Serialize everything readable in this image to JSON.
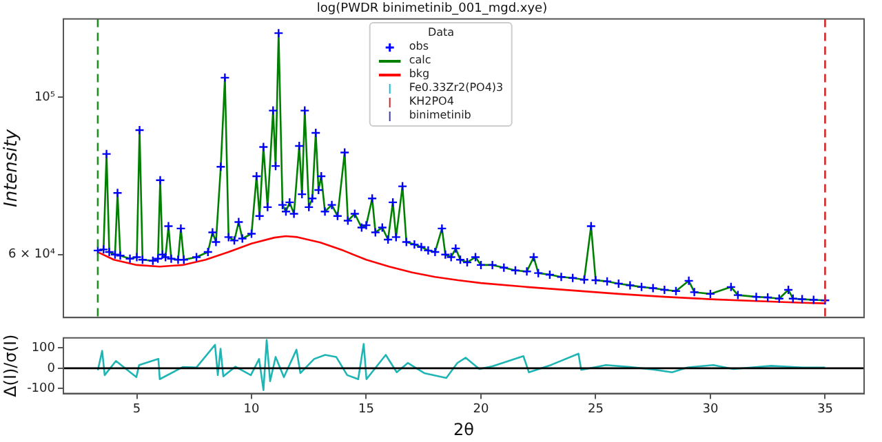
{
  "chart_data": [
    {
      "type": "line",
      "title": "log(PWDR binimetinib_001_mgd.xye)",
      "ylabel": "Intensity",
      "legend": "top",
      "legend_title": "Data",
      "log": "y",
      "grid": false,
      "tick_labels": "y",
      "xlim": [
        1.8,
        36.7
      ],
      "ylim": [
        48900,
        129000
      ],
      "yticks": [
        {
          "value": 60000,
          "label": "6 × 10⁴"
        },
        {
          "value": 100000,
          "label": "10⁵"
        }
      ],
      "x": [
        3.3,
        3.55,
        3.68,
        3.8,
        4.05,
        4.16,
        4.28,
        4.7,
        5.0,
        5.12,
        5.25,
        5.7,
        5.92,
        6.02,
        6.12,
        6.25,
        6.38,
        6.5,
        6.8,
        6.92,
        7.05,
        7.6,
        8.1,
        8.3,
        8.45,
        8.66,
        8.84,
        9.0,
        9.25,
        9.44,
        9.6,
        10.0,
        10.22,
        10.35,
        10.52,
        10.7,
        10.94,
        11.05,
        11.18,
        11.35,
        11.5,
        11.66,
        11.85,
        12.08,
        12.2,
        12.32,
        12.5,
        12.65,
        12.8,
        12.92,
        13.04,
        13.2,
        13.5,
        13.75,
        14.06,
        14.2,
        14.5,
        14.8,
        15.0,
        15.26,
        15.4,
        15.7,
        15.95,
        16.16,
        16.3,
        16.58,
        16.75,
        17.1,
        17.4,
        17.7,
        18.0,
        18.3,
        18.45,
        18.7,
        18.9,
        19.1,
        19.4,
        19.76,
        20.0,
        20.5,
        21.0,
        21.5,
        22.0,
        22.3,
        22.5,
        23.0,
        23.5,
        24.0,
        24.5,
        24.8,
        25.0,
        25.5,
        26.0,
        26.5,
        27.0,
        27.5,
        28.0,
        28.5,
        29.06,
        29.3,
        30.0,
        30.9,
        31.2,
        32.0,
        32.5,
        33.0,
        33.4,
        33.6,
        34.0,
        34.5,
        35.0
      ],
      "series": [
        {
          "name": "obs",
          "type": "scatter",
          "marker": "cross",
          "color": "#0000ff",
          "values": [
            60800,
            61000,
            83200,
            60500,
            60000,
            73300,
            59800,
            59200,
            59500,
            89900,
            59000,
            58800,
            59200,
            76400,
            60000,
            59500,
            65800,
            59200,
            59000,
            65300,
            59000,
            59500,
            60500,
            64500,
            62500,
            79800,
            106600,
            63500,
            62800,
            66700,
            63200,
            64200,
            77400,
            68000,
            85100,
            70000,
            95800,
            80000,
            123200,
            70500,
            69000,
            71100,
            68500,
            85400,
            73000,
            95800,
            70000,
            72000,
            89100,
            74000,
            77400,
            69000,
            70500,
            68000,
            83600,
            67000,
            68500,
            65500,
            66000,
            72000,
            64500,
            65500,
            63000,
            71100,
            63500,
            74900,
            62500,
            62000,
            61500,
            60800,
            60500,
            65300,
            60000,
            59500,
            61200,
            59000,
            58500,
            59500,
            58000,
            58000,
            57500,
            57000,
            56800,
            59500,
            56500,
            56200,
            55800,
            55600,
            55300,
            65800,
            55200,
            55000,
            54600,
            54300,
            54000,
            53800,
            53500,
            53300,
            55100,
            53100,
            52800,
            54000,
            52600,
            52300,
            52200,
            52000,
            53500,
            52000,
            51900,
            51800,
            51700
          ]
        },
        {
          "name": "calc",
          "type": "line",
          "color": "#008000",
          "values": [
            60800,
            61000,
            83200,
            60500,
            60000,
            73300,
            59800,
            59200,
            59500,
            89900,
            59000,
            58800,
            59200,
            76400,
            60000,
            59500,
            65800,
            59200,
            59000,
            65300,
            59000,
            59500,
            60500,
            64500,
            62500,
            79800,
            106600,
            63500,
            62800,
            66700,
            63200,
            64200,
            77400,
            68000,
            85100,
            70000,
            95800,
            80000,
            123200,
            70500,
            69000,
            71100,
            68500,
            85400,
            73000,
            95800,
            70000,
            72000,
            89100,
            74000,
            77400,
            69000,
            70500,
            68000,
            83600,
            67000,
            68500,
            65500,
            66000,
            72000,
            64500,
            65500,
            63000,
            71100,
            63500,
            74900,
            62500,
            62000,
            61500,
            60800,
            60500,
            65300,
            60000,
            59500,
            61200,
            59000,
            58500,
            59500,
            58000,
            58000,
            57500,
            57000,
            56800,
            59500,
            56500,
            56200,
            55800,
            55600,
            55300,
            65800,
            55200,
            55000,
            54600,
            54300,
            54000,
            53800,
            53500,
            53300,
            55100,
            53100,
            52800,
            54000,
            52600,
            52300,
            52200,
            52000,
            53500,
            52000,
            51900,
            51800,
            51700
          ]
        },
        {
          "name": "bkg",
          "type": "line",
          "color": "#ff0000",
          "x": [
            3.3,
            4,
            5,
            6,
            7,
            8,
            9,
            10,
            11,
            11.5,
            12,
            13,
            14,
            15,
            16,
            17,
            18,
            19,
            20,
            22,
            24,
            26,
            28,
            30,
            32,
            34,
            35
          ],
          "values": [
            60500,
            59000,
            58000,
            57700,
            58000,
            59000,
            60500,
            62200,
            63400,
            63700,
            63500,
            62400,
            60800,
            59000,
            57700,
            56600,
            55800,
            55200,
            54700,
            54000,
            53400,
            52800,
            52300,
            51900,
            51600,
            51300,
            51200
          ]
        },
        {
          "name": "Fe0.33Zr2(PO4)3",
          "type": "scatter",
          "color": "#17becf",
          "values": [
            null,
            null,
            null,
            null,
            null,
            null,
            null,
            null,
            null,
            null,
            null,
            null,
            null,
            null,
            null,
            null,
            null,
            null,
            null,
            null,
            null,
            null,
            null,
            null,
            null,
            null,
            null,
            null,
            null,
            null,
            null,
            null,
            null,
            null,
            null,
            null,
            null,
            null,
            null,
            null,
            null,
            null,
            null,
            null,
            null,
            null,
            null,
            null,
            null,
            null,
            null,
            null,
            null,
            null,
            null,
            null,
            null,
            null,
            null,
            null,
            null,
            null,
            null,
            null,
            null,
            null,
            null,
            null,
            null,
            null,
            null,
            null,
            null,
            null,
            null,
            null,
            null,
            null,
            null,
            null,
            null,
            null,
            null,
            null,
            null,
            null,
            null,
            null,
            null,
            null,
            null,
            null,
            null,
            null,
            null,
            null,
            null,
            null,
            null,
            null,
            null,
            null,
            null,
            null,
            null,
            null,
            null,
            null,
            null,
            null,
            null
          ]
        },
        {
          "name": "KH2PO4",
          "type": "scatter",
          "color": "#d62728",
          "values": [
            null,
            null,
            null,
            null,
            null,
            null,
            null,
            null,
            null,
            null,
            null,
            null,
            null,
            null,
            null,
            null,
            null,
            null,
            null,
            null,
            null,
            null,
            null,
            null,
            null,
            null,
            null,
            null,
            null,
            null,
            null,
            null,
            null,
            null,
            null,
            null,
            null,
            null,
            null,
            null,
            null,
            null,
            null,
            null,
            null,
            null,
            null,
            null,
            null,
            null,
            null,
            null,
            null,
            null,
            null,
            null,
            null,
            null,
            null,
            null,
            null,
            null,
            null,
            null,
            null,
            null,
            null,
            null,
            null,
            null,
            null,
            null,
            null,
            null,
            null,
            null,
            null,
            null,
            null,
            null,
            null,
            null,
            null,
            null,
            null,
            null,
            null,
            null,
            null,
            null,
            null,
            null,
            null,
            null,
            null,
            null,
            null,
            null,
            null,
            null,
            null,
            null,
            null,
            null,
            null,
            null,
            null,
            null,
            null,
            null,
            null
          ]
        },
        {
          "name": "binimetinib",
          "type": "scatter",
          "color": "#3b3bb3",
          "values": [
            null,
            null,
            null,
            null,
            null,
            null,
            null,
            null,
            null,
            null,
            null,
            null,
            null,
            null,
            null,
            null,
            null,
            null,
            null,
            null,
            null,
            null,
            null,
            null,
            null,
            null,
            null,
            null,
            null,
            null,
            null,
            null,
            null,
            null,
            null,
            null,
            null,
            null,
            null,
            null,
            null,
            null,
            null,
            null,
            null,
            null,
            null,
            null,
            null,
            null,
            null,
            null,
            null,
            null,
            null,
            null,
            null,
            null,
            null,
            null,
            null,
            null,
            null,
            null,
            null,
            null,
            null,
            null,
            null,
            null,
            null,
            null,
            null,
            null,
            null,
            null,
            null,
            null,
            null,
            null,
            null,
            null,
            null,
            null,
            null,
            null,
            null,
            null,
            null,
            null,
            null,
            null,
            null,
            null,
            null,
            null,
            null,
            null,
            null,
            null,
            null,
            null,
            null,
            null,
            null,
            null,
            null,
            null,
            null,
            null,
            null
          ]
        }
      ],
      "ref_lines": [
        {
          "axis": "x",
          "value": 3.3,
          "color": "#228b22",
          "line_style": "dashed"
        },
        {
          "axis": "x",
          "value": 35,
          "color": "#d62728",
          "line_style": "dashed"
        }
      ]
    },
    {
      "type": "line",
      "xlabel": "2θ",
      "ylabel": "Δ(I)/σ(I)",
      "grid": false,
      "legend": false,
      "xlim": [
        1.8,
        36.7
      ],
      "xticks": [
        5,
        10,
        15,
        20,
        25,
        30,
        35
      ],
      "ylim": [
        -125,
        150
      ],
      "yticks": [
        -100,
        0,
        100
      ],
      "x": [
        3.3,
        3.49,
        3.6,
        4.09,
        4.98,
        5.1,
        5.94,
        6.0,
        7.0,
        7.6,
        8.41,
        8.53,
        8.65,
        8.77,
        9.3,
        9.97,
        10.33,
        10.52,
        10.66,
        10.81,
        11.05,
        11.41,
        11.96,
        12.13,
        12.73,
        13.21,
        13.69,
        14.17,
        14.65,
        14.89,
        15.01,
        15.85,
        16.33,
        16.81,
        17.53,
        18.49,
        18.97,
        19.33,
        19.93,
        20.5,
        21.85,
        22.09,
        23.05,
        24.25,
        24.37,
        25.45,
        26.5,
        27.5,
        28.33,
        29.0,
        30.13,
        31.0,
        32.65,
        34.0,
        35.0
      ],
      "series": [
        {
          "type": "line",
          "color": "#1fb5b5",
          "values": [
            -10,
            86,
            -34,
            36,
            -44,
            16,
            46,
            -54,
            6,
            4,
            116,
            -34,
            96,
            -40,
            8,
            -34,
            46,
            -108,
            140,
            -64,
            56,
            -44,
            92,
            -24,
            46,
            66,
            56,
            -34,
            -54,
            120,
            -54,
            66,
            -20,
            26,
            -24,
            -48,
            26,
            52,
            -4,
            10,
            60,
            -20,
            16,
            72,
            -8,
            16,
            6,
            -6,
            -20,
            4,
            16,
            -4,
            12,
            4,
            4
          ]
        }
      ],
      "ref_lines": [
        {
          "axis": "y",
          "value": 0,
          "color": "#000000",
          "line_style": "solid"
        }
      ]
    }
  ]
}
